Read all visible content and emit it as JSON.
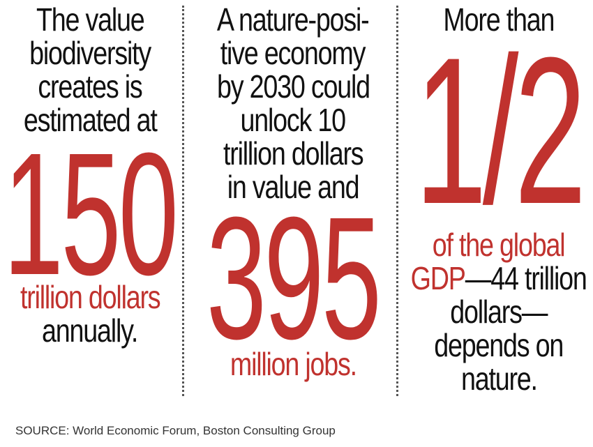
{
  "column1": {
    "intro_lines": [
      "The value",
      "biodiversity",
      "creates is",
      "estimated at"
    ],
    "figure": "150",
    "unit": "trillion dollars",
    "tail": "annually."
  },
  "column2": {
    "intro_lines": [
      "A nature-posi-",
      "tive economy",
      "by 2030 could",
      "unlock 10",
      "trillion dollars",
      "in value  and"
    ],
    "figure": "395",
    "unit": "million jobs."
  },
  "column3": {
    "intro": "More than",
    "figure": "1/2",
    "unit_line1": "of the global",
    "unit_line2_red": "GDP",
    "unit_line2_rest": "—44 trillion",
    "tail_lines": [
      "dollars—",
      "depends on",
      "nature."
    ]
  },
  "source": "SOURCE: World Economic Forum, Boston Consulting Group",
  "colors": {
    "accent": "#c0322e",
    "text": "#111111"
  }
}
